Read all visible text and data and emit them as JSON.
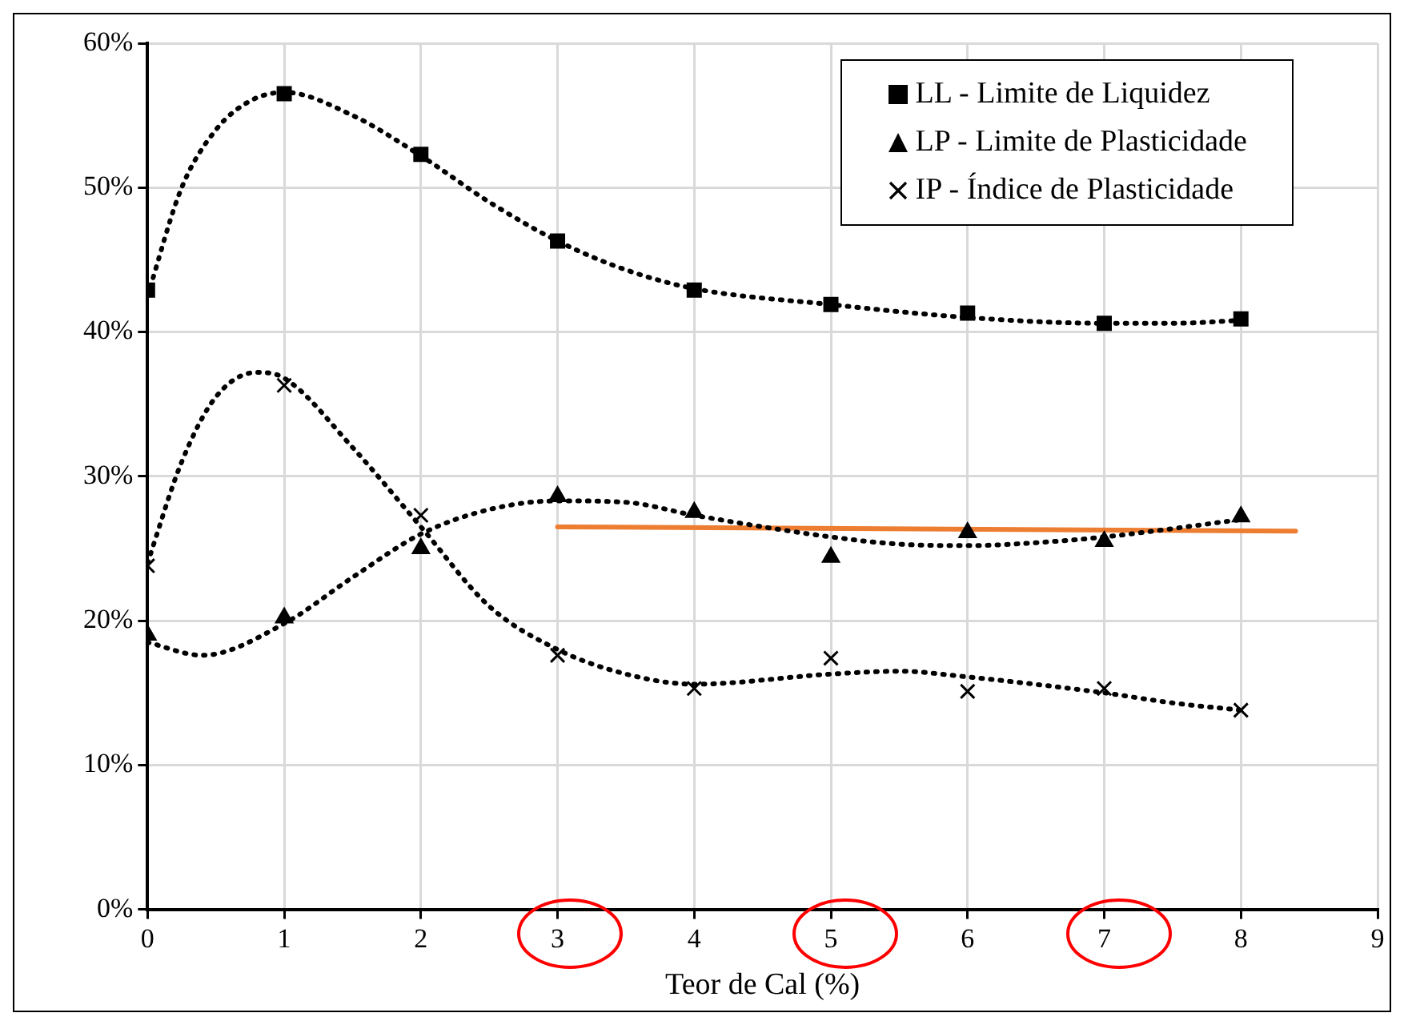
{
  "chart_data": {
    "type": "scatter",
    "xlabel": "Teor de Cal (%)",
    "xlim": [
      0,
      9
    ],
    "xticks": [
      0,
      1,
      2,
      3,
      4,
      5,
      6,
      7,
      8,
      9
    ],
    "ylim": [
      0,
      60
    ],
    "yticks": [
      {
        "value": 0,
        "label": "0%"
      },
      {
        "value": 10,
        "label": "10%"
      },
      {
        "value": 20,
        "label": "20%"
      },
      {
        "value": 30,
        "label": "30%"
      },
      {
        "value": 40,
        "label": "40%"
      },
      {
        "value": 50,
        "label": "50%"
      },
      {
        "value": 60,
        "label": "60%"
      }
    ],
    "grid": true,
    "legend": "top right",
    "series": [
      {
        "name": "LL - Limite de Liquidez",
        "marker": "square",
        "color": "#000000",
        "x": [
          0,
          1,
          2,
          3,
          4,
          5,
          6,
          7,
          8
        ],
        "values": [
          42.9,
          56.5,
          52.3,
          46.3,
          42.9,
          41.9,
          41.3,
          40.6,
          40.9
        ]
      },
      {
        "name": "LP - Limite de Plasticidade",
        "marker": "triangle",
        "color": "#000000",
        "x": [
          0,
          1,
          2,
          3,
          4,
          5,
          6,
          7,
          8
        ],
        "values": [
          19.0,
          20.2,
          25.0,
          28.6,
          27.5,
          24.4,
          26.1,
          25.5,
          27.2
        ]
      },
      {
        "name": "IP - Índice de Plasticidade",
        "marker": "cross",
        "color": "#000000",
        "x": [
          0,
          1,
          2,
          3,
          4,
          5,
          6,
          7,
          8
        ],
        "values": [
          23.8,
          36.3,
          27.3,
          17.6,
          15.3,
          17.4,
          15.1,
          15.3,
          13.8
        ]
      },
      {
        "type": "line",
        "marker": "none",
        "line_style": "dotted",
        "color": "#000000",
        "x": [
          0,
          0.25,
          0.5,
          0.75,
          1,
          1.5,
          2,
          2.5,
          3,
          3.5,
          4,
          5,
          6,
          7,
          7.5,
          8
        ],
        "values": [
          42.5,
          50,
          54,
          56,
          56.6,
          55,
          52.2,
          49,
          46.3,
          44.3,
          43,
          41.9,
          41,
          40.6,
          40.6,
          40.8
        ]
      },
      {
        "type": "line",
        "marker": "none",
        "line_style": "dotted",
        "color": "#000000",
        "x": [
          0,
          0.4,
          1,
          1.5,
          2,
          2.5,
          3,
          3.5,
          4,
          5,
          5.5,
          6,
          6.5,
          7,
          8
        ],
        "values": [
          18.5,
          17.6,
          19.8,
          23,
          26,
          27.7,
          28.3,
          28.2,
          27.3,
          25.8,
          25.3,
          25.2,
          25.4,
          25.8,
          27.0
        ]
      },
      {
        "type": "line",
        "marker": "none",
        "line_style": "dotted",
        "color": "#000000",
        "x": [
          0,
          0.25,
          0.5,
          0.8,
          1,
          1.5,
          2,
          2.5,
          3,
          3.5,
          4,
          5,
          5.5,
          6,
          7,
          7.5,
          8
        ],
        "values": [
          24,
          31,
          35.5,
          37.2,
          36.8,
          32,
          26.5,
          21,
          18,
          16.3,
          15.6,
          16.3,
          16.5,
          16.1,
          15,
          14.3,
          13.8
        ]
      },
      {
        "type": "line",
        "marker": "none",
        "line_style": "solid",
        "color": "#ed7d31",
        "x": [
          3,
          8.4
        ],
        "values": [
          26.5,
          26.2
        ]
      }
    ]
  }
}
